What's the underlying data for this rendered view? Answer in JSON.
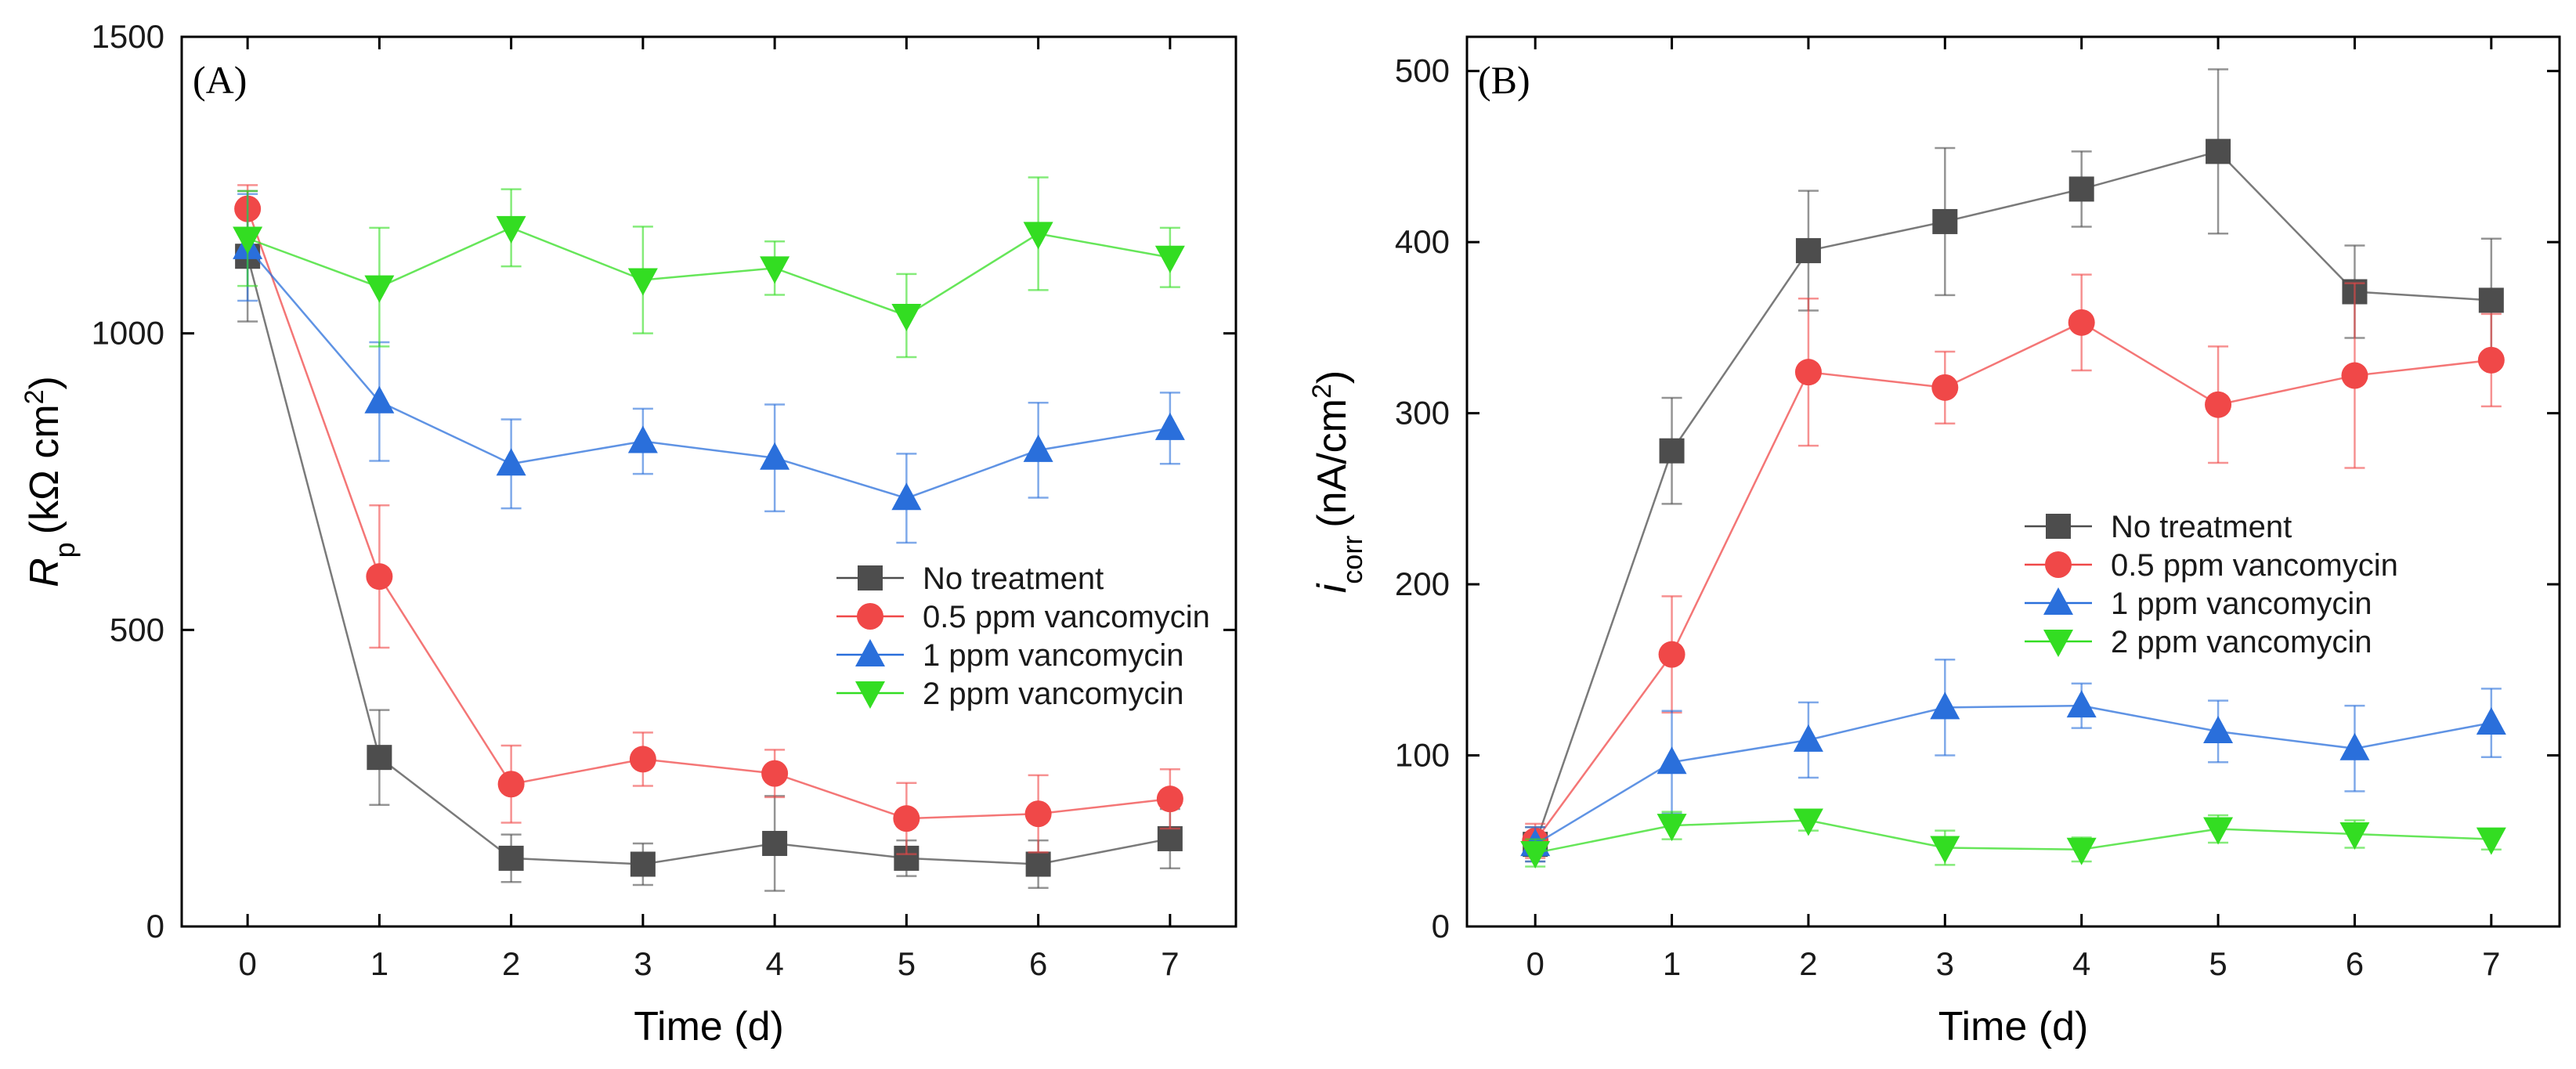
{
  "chart_data": [
    {
      "type": "line",
      "panel_label": "(A)",
      "x": [
        0,
        1,
        2,
        3,
        4,
        5,
        6,
        7
      ],
      "xlabel": "Time (d)",
      "ylabel": {
        "main": "R",
        "sub": "p",
        "unit": "(kΩ cm",
        "sup": "2",
        "close": ")"
      },
      "xlim": [
        -0.5,
        7.5
      ],
      "ylim": [
        0,
        1500
      ],
      "xticks": [
        "0",
        "1",
        "2",
        "3",
        "4",
        "5",
        "6",
        "7"
      ],
      "yticks": [
        0,
        500,
        1000,
        1500
      ],
      "ytick_labels": [
        "0",
        "500",
        "1000",
        "1500"
      ],
      "grid": false,
      "legend_position": "center-right",
      "series": [
        {
          "name": "No treatment",
          "color": "#4d4d4d",
          "marker": "square",
          "values": [
            1130,
            285,
            115,
            105,
            140,
            115,
            105,
            148
          ],
          "errors": [
            110,
            80,
            40,
            35,
            80,
            30,
            40,
            50
          ]
        },
        {
          "name": "0.5 ppm vancomycin",
          "color": "#f04848",
          "marker": "circle",
          "values": [
            1210,
            590,
            240,
            282,
            258,
            182,
            190,
            215
          ],
          "errors": [
            40,
            120,
            65,
            45,
            40,
            60,
            65,
            50
          ]
        },
        {
          "name": "1 ppm vancomycin",
          "color": "#2a6fdb",
          "marker": "triangle-up",
          "values": [
            1145,
            885,
            780,
            818,
            790,
            722,
            803,
            840
          ],
          "errors": [
            90,
            100,
            75,
            55,
            90,
            75,
            80,
            60
          ]
        },
        {
          "name": "2 ppm vancomycin",
          "color": "#33dd22",
          "marker": "triangle-down",
          "values": [
            1160,
            1078,
            1178,
            1090,
            1110,
            1030,
            1168,
            1128
          ],
          "errors": [
            80,
            100,
            65,
            90,
            45,
            70,
            95,
            50
          ]
        }
      ]
    },
    {
      "type": "line",
      "panel_label": "(B)",
      "x": [
        0,
        1,
        2,
        3,
        4,
        5,
        6,
        7
      ],
      "xlabel": "Time (d)",
      "ylabel": {
        "main": "i",
        "sub": "corr",
        "unit": "(nA/cm",
        "sup": "2",
        "close": ")"
      },
      "xlim": [
        -0.5,
        7.5
      ],
      "ylim": [
        0,
        520
      ],
      "xticks": [
        "0",
        "1",
        "2",
        "3",
        "4",
        "5",
        "6",
        "7"
      ],
      "yticks": [
        0,
        100,
        200,
        300,
        400,
        500
      ],
      "ytick_labels": [
        "0",
        "100",
        "200",
        "300",
        "400",
        "500"
      ],
      "grid": false,
      "legend_position": "center-right",
      "series": [
        {
          "name": "No treatment",
          "color": "#4d4d4d",
          "marker": "square",
          "values": [
            48,
            278,
            395,
            412,
            431,
            453,
            371,
            366
          ],
          "errors": [
            10,
            31,
            35,
            43,
            22,
            48,
            27,
            36
          ]
        },
        {
          "name": "0.5 ppm vancomycin",
          "color": "#f04848",
          "marker": "circle",
          "values": [
            50,
            159,
            324,
            315,
            353,
            305,
            322,
            331
          ],
          "errors": [
            10,
            34,
            43,
            21,
            28,
            34,
            54,
            27
          ]
        },
        {
          "name": "1 ppm vancomycin",
          "color": "#2a6fdb",
          "marker": "triangle-up",
          "values": [
            48,
            96,
            109,
            128,
            129,
            114,
            104,
            119
          ],
          "errors": [
            10,
            30,
            22,
            28,
            13,
            18,
            25,
            20
          ]
        },
        {
          "name": "2 ppm vancomycin",
          "color": "#33dd22",
          "marker": "triangle-down",
          "values": [
            43,
            59,
            62,
            46,
            45,
            57,
            54,
            51
          ],
          "errors": [
            8,
            8,
            6,
            10,
            7,
            8,
            8,
            6
          ]
        }
      ]
    }
  ]
}
